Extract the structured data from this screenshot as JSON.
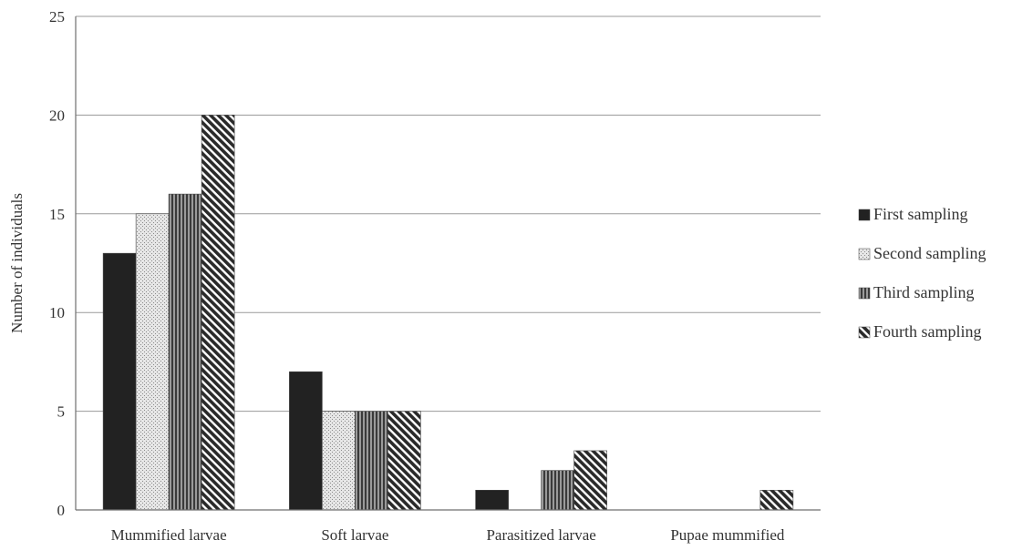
{
  "chart_data": {
    "type": "bar",
    "title": "",
    "xlabel": "",
    "ylabel": "Number of individuals",
    "ylim": [
      0,
      25
    ],
    "yticks": [
      0,
      5,
      10,
      15,
      20,
      25
    ],
    "grid": true,
    "legend_position": "right",
    "categories": [
      "Mummified larvae",
      "Soft larvae",
      "Parasitized larvae",
      "Pupae mummified"
    ],
    "series": [
      {
        "name": "First sampling",
        "values": [
          13,
          7,
          1,
          0
        ],
        "pattern": "solid",
        "color": "#222222"
      },
      {
        "name": "Second sampling",
        "values": [
          15,
          5,
          0,
          0
        ],
        "pattern": "dotted",
        "color": "#d8d8d8"
      },
      {
        "name": "Third sampling",
        "values": [
          16,
          5,
          2,
          0
        ],
        "pattern": "vertical",
        "color": "#555555"
      },
      {
        "name": "Fourth sampling",
        "values": [
          20,
          5,
          3,
          1
        ],
        "pattern": "diagonal",
        "color": "#333333"
      }
    ]
  }
}
